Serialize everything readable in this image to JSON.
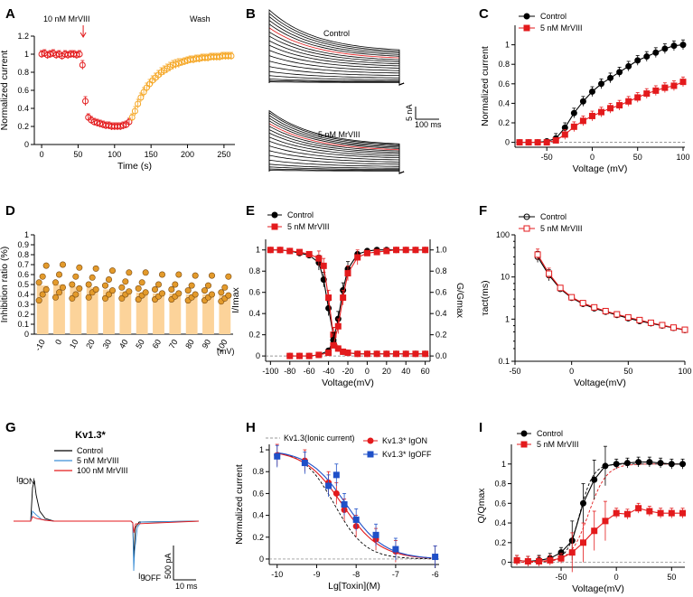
{
  "colors": {
    "black": "#000000",
    "red": "#e31a1c",
    "orange": "#f5a623",
    "bar": "#fcd39a",
    "barDot": "#e39a2b",
    "blue": "#1f50c8",
    "lightblue": "#3d8fd6"
  },
  "chart_data": [
    {
      "id": "A",
      "type": "scatter",
      "panel_label": "A",
      "xlabel": "Time (s)",
      "ylabel": "Normalized current",
      "xlim": [
        -10,
        265
      ],
      "ylim": [
        0,
        1.2
      ],
      "xticks": [
        0,
        50,
        100,
        150,
        200,
        250
      ],
      "yticks": [
        0.0,
        0.2,
        0.4,
        0.6,
        0.8,
        1.0,
        1.2
      ],
      "annotations": {
        "drug": "10 nM MrVIII",
        "wash": "Wash"
      },
      "series": [
        {
          "name": "drug",
          "color": "red",
          "x": [
            0,
            4,
            8,
            12,
            16,
            20,
            24,
            28,
            32,
            36,
            40,
            44,
            48,
            52,
            56,
            60,
            64,
            68,
            72,
            76,
            80,
            84,
            88,
            92,
            96,
            100,
            104,
            108,
            112,
            116,
            120
          ],
          "y": [
            1.0,
            1.01,
            0.99,
            1.0,
            1.01,
            0.99,
            1.0,
            0.98,
            1.0,
            0.99,
            1.0,
            1.0,
            0.99,
            1.0,
            0.88,
            0.48,
            0.3,
            0.27,
            0.25,
            0.24,
            0.23,
            0.22,
            0.21,
            0.21,
            0.2,
            0.2,
            0.2,
            0.2,
            0.21,
            0.22,
            0.25
          ]
        },
        {
          "name": "wash",
          "color": "orange",
          "x": [
            124,
            128,
            132,
            136,
            140,
            144,
            148,
            152,
            156,
            160,
            164,
            168,
            172,
            176,
            180,
            184,
            188,
            192,
            196,
            200,
            204,
            208,
            212,
            216,
            220,
            224,
            228,
            232,
            236,
            240,
            244,
            248,
            252,
            256,
            260
          ],
          "y": [
            0.3,
            0.37,
            0.45,
            0.52,
            0.58,
            0.63,
            0.67,
            0.71,
            0.74,
            0.77,
            0.8,
            0.82,
            0.84,
            0.86,
            0.88,
            0.89,
            0.9,
            0.91,
            0.92,
            0.93,
            0.94,
            0.94,
            0.95,
            0.95,
            0.96,
            0.96,
            0.96,
            0.97,
            0.97,
            0.97,
            0.97,
            0.98,
            0.98,
            0.98,
            0.98
          ]
        }
      ]
    },
    {
      "id": "B",
      "type": "line",
      "panel_label": "B",
      "traces_top_label": "Control",
      "traces_bottom_label": "5 nM MrVIII",
      "scale_current": "5 nA",
      "scale_time": "100 ms",
      "top_peaks_nA": [
        0.3,
        0.6,
        1.0,
        1.8,
        2.8,
        4.0,
        5.3,
        6.6,
        7.9,
        9.1,
        10.2,
        11.3,
        12.3,
        13.3,
        14.2,
        15.1,
        16.0,
        16.8,
        17.6
      ],
      "bottom_peaks_nA": [
        0.2,
        0.4,
        0.7,
        1.1,
        1.7,
        2.4,
        3.1,
        3.8,
        4.5,
        5.1,
        5.7,
        6.2,
        6.7,
        7.1,
        7.5,
        7.9,
        8.3,
        8.7,
        9.0
      ],
      "red_trace_index": 13
    },
    {
      "id": "C",
      "type": "line",
      "panel_label": "C",
      "xlabel": "Voltage (mV)",
      "ylabel": "Normalized current",
      "xlim": [
        -85,
        102
      ],
      "ylim": [
        -0.05,
        1.2
      ],
      "xticks": [
        -50,
        0,
        50,
        100
      ],
      "yticks": [
        0.0,
        0.2,
        0.4,
        0.6,
        0.8,
        1.0
      ],
      "series": [
        {
          "name": "Control",
          "color": "black",
          "marker": "circle",
          "x": [
            -80,
            -70,
            -60,
            -50,
            -40,
            -30,
            -20,
            -10,
            0,
            10,
            20,
            30,
            40,
            50,
            60,
            70,
            80,
            90,
            100
          ],
          "y": [
            0,
            0,
            0,
            0.01,
            0.04,
            0.15,
            0.3,
            0.42,
            0.52,
            0.6,
            0.66,
            0.72,
            0.78,
            0.84,
            0.88,
            0.92,
            0.96,
            0.99,
            1.0
          ]
        },
        {
          "name": "5 nM MrVIII",
          "color": "red",
          "marker": "square",
          "x": [
            -80,
            -70,
            -60,
            -50,
            -40,
            -30,
            -20,
            -10,
            0,
            10,
            20,
            30,
            40,
            50,
            60,
            70,
            80,
            90,
            100
          ],
          "y": [
            0,
            0,
            0,
            0,
            0.02,
            0.08,
            0.16,
            0.22,
            0.27,
            0.31,
            0.35,
            0.38,
            0.42,
            0.46,
            0.5,
            0.53,
            0.56,
            0.58,
            0.62
          ]
        }
      ]
    },
    {
      "id": "D",
      "type": "bar",
      "panel_label": "D",
      "ylabel": "Inhibition ratio (%)",
      "xunit": "(mV)",
      "categories": [
        "-10",
        "0",
        "10",
        "20",
        "30",
        "40",
        "50",
        "60",
        "70",
        "80",
        "90",
        "100"
      ],
      "values": [
        0.49,
        0.5,
        0.48,
        0.47,
        0.45,
        0.43,
        0.42,
        0.41,
        0.41,
        0.4,
        0.4,
        0.39
      ],
      "points": [
        [
          0.34,
          0.4,
          0.45,
          0.52,
          0.58,
          0.69
        ],
        [
          0.37,
          0.42,
          0.47,
          0.52,
          0.6,
          0.7
        ],
        [
          0.36,
          0.4,
          0.46,
          0.5,
          0.58,
          0.67
        ],
        [
          0.37,
          0.42,
          0.45,
          0.5,
          0.57,
          0.66
        ],
        [
          0.36,
          0.4,
          0.44,
          0.49,
          0.55,
          0.64
        ],
        [
          0.36,
          0.4,
          0.43,
          0.47,
          0.53,
          0.62
        ],
        [
          0.35,
          0.39,
          0.42,
          0.46,
          0.52,
          0.62
        ],
        [
          0.35,
          0.38,
          0.41,
          0.45,
          0.5,
          0.6
        ],
        [
          0.35,
          0.38,
          0.41,
          0.45,
          0.5,
          0.6
        ],
        [
          0.34,
          0.37,
          0.4,
          0.44,
          0.49,
          0.59
        ],
        [
          0.34,
          0.37,
          0.4,
          0.44,
          0.49,
          0.59
        ],
        [
          0.33,
          0.36,
          0.39,
          0.42,
          0.47,
          0.58
        ]
      ],
      "ylim": [
        0,
        1.0
      ],
      "yticks": [
        0.0,
        0.1,
        0.2,
        0.3,
        0.4,
        0.5,
        0.6,
        0.7,
        0.8,
        0.9,
        1.0
      ]
    },
    {
      "id": "E",
      "type": "line",
      "panel_label": "E",
      "xlabel": "Voltage(mV)",
      "ylabel": "I/Imax",
      "ylabel_right": "G/Gmax",
      "xlim": [
        -105,
        65
      ],
      "ylim": [
        -0.05,
        1.1
      ],
      "xticks": [
        -100,
        -80,
        -60,
        -40,
        -20,
        0,
        20,
        40,
        60
      ],
      "yticks": [
        0.0,
        0.2,
        0.4,
        0.6,
        0.8,
        1.0
      ],
      "yticks_right": [
        "0.0",
        "0.2",
        "0.4",
        "0.6",
        "0.8",
        "1.0"
      ],
      "series": [
        {
          "name": "Control",
          "color": "black",
          "marker": "circle",
          "x": [
            -100,
            -90,
            -80,
            -70,
            -60,
            -50,
            -45,
            -40,
            -35,
            -30,
            -25,
            -20,
            -10,
            0,
            10,
            20,
            30,
            40,
            50,
            60
          ],
          "y": [
            1.0,
            1.0,
            0.99,
            0.97,
            0.95,
            0.88,
            0.72,
            0.45,
            0.2,
            0.07,
            0.04,
            0.03,
            0.02,
            0.02,
            0.02,
            0.02,
            0.02,
            0.02,
            0.02,
            0.02
          ]
        },
        {
          "name": "5 nM MrVIII",
          "color": "red",
          "marker": "square",
          "x": [
            -100,
            -90,
            -80,
            -70,
            -60,
            -50,
            -45,
            -40,
            -35,
            -30,
            -25,
            -20,
            -10,
            0,
            10,
            20,
            30,
            40,
            50,
            60
          ],
          "y": [
            1.0,
            1.0,
            0.99,
            0.98,
            0.96,
            0.92,
            0.85,
            0.55,
            0.2,
            0.07,
            0.04,
            0.03,
            0.02,
            0.02,
            0.02,
            0.02,
            0.02,
            0.02,
            0.02,
            0.02
          ]
        },
        {
          "name": "Control G",
          "color": "black",
          "marker": "circle",
          "x": [
            -80,
            -70,
            -60,
            -50,
            -40,
            -35,
            -30,
            -25,
            -20,
            -10,
            0,
            10,
            20,
            30,
            40,
            50,
            60
          ],
          "y": [
            0.0,
            0.0,
            0.0,
            0.01,
            0.05,
            0.15,
            0.35,
            0.62,
            0.82,
            0.96,
            0.99,
            1.0,
            1.0,
            1.0,
            1.0,
            1.0,
            1.0
          ]
        },
        {
          "name": "5 nM MrVIII G",
          "color": "red",
          "marker": "square",
          "x": [
            -80,
            -70,
            -60,
            -50,
            -40,
            -35,
            -30,
            -25,
            -20,
            -10,
            0,
            10,
            20,
            30,
            40,
            50,
            60
          ],
          "y": [
            0.0,
            0.0,
            0.0,
            0.01,
            0.03,
            0.1,
            0.28,
            0.55,
            0.78,
            0.93,
            0.97,
            0.98,
            0.99,
            1.0,
            1.0,
            1.0,
            1.0
          ]
        }
      ]
    },
    {
      "id": "F",
      "type": "line",
      "panel_label": "F",
      "xlabel": "Voltage(mV)",
      "ylabel": "τact(ms)",
      "xlim": [
        -50,
        100
      ],
      "ylim_log": [
        0.1,
        100
      ],
      "xticks": [
        -50,
        0,
        50,
        100
      ],
      "yticks": [
        "0.1",
        "1",
        "10",
        "100"
      ],
      "series": [
        {
          "name": "Control",
          "color": "black",
          "marker": "open-circle",
          "x": [
            -30,
            -20,
            -10,
            0,
            10,
            20,
            30,
            40,
            50,
            60,
            70,
            80,
            90,
            100
          ],
          "y": [
            30,
            11,
            5.2,
            3.2,
            2.3,
            1.8,
            1.5,
            1.25,
            1.05,
            0.9,
            0.8,
            0.7,
            0.62,
            0.55
          ]
        },
        {
          "name": "5 nM MrVIII",
          "color": "red",
          "marker": "open-square",
          "x": [
            -30,
            -20,
            -10,
            0,
            10,
            20,
            30,
            40,
            50,
            60,
            70,
            80,
            90,
            100
          ],
          "y": [
            34,
            12,
            5.5,
            3.3,
            2.4,
            1.9,
            1.55,
            1.3,
            1.1,
            0.95,
            0.82,
            0.72,
            0.63,
            0.56
          ]
        }
      ]
    },
    {
      "id": "G",
      "type": "line",
      "panel_label": "G",
      "title": "Kv1.3*",
      "legend": [
        "Control",
        "5 nM MrVIII",
        "100 nM MrVIII"
      ],
      "label_on": "IgON",
      "label_off": "IgOFF",
      "scale_current": "500 pA",
      "scale_time": "10 ms"
    },
    {
      "id": "H",
      "type": "line",
      "panel_label": "H",
      "xlabel": "Lg[Toxin](M)",
      "ylabel": "Normalized current",
      "xlim": [
        -10.2,
        -5.9
      ],
      "ylim": [
        -0.05,
        1.05
      ],
      "xticks": [
        -10,
        -9,
        -8,
        -7,
        -6
      ],
      "yticks": [
        0.0,
        0.2,
        0.4,
        0.6,
        0.8,
        1.0
      ],
      "legend_dashed": "Kv1.3(Ionic current)",
      "series": [
        {
          "name": "Kv1.3* IgON",
          "color": "red",
          "marker": "circle",
          "x": [
            -10,
            -9.3,
            -8.7,
            -8.5,
            -8.3,
            -8.0,
            -7.5,
            -7.0,
            -6.0
          ],
          "y": [
            0.95,
            0.9,
            0.7,
            0.6,
            0.45,
            0.3,
            0.18,
            0.07,
            0.02
          ]
        },
        {
          "name": "Kv1.3* IgOFF",
          "color": "blue",
          "marker": "square",
          "x": [
            -10,
            -9.3,
            -8.7,
            -8.5,
            -8.3,
            -8.0,
            -7.5,
            -7.0,
            -6.0
          ],
          "y": [
            0.94,
            0.88,
            0.67,
            0.77,
            0.5,
            0.36,
            0.22,
            0.09,
            0.02
          ]
        }
      ]
    },
    {
      "id": "I",
      "type": "line",
      "panel_label": "I",
      "xlabel": "Voltage(mV)",
      "ylabel": "Q/Qmax",
      "xlim": [
        -95,
        62
      ],
      "ylim": [
        -0.05,
        1.2
      ],
      "xticks": [
        -50,
        0,
        50
      ],
      "yticks": [
        0.0,
        0.2,
        0.4,
        0.6,
        0.8,
        1.0
      ],
      "series": [
        {
          "name": "Control",
          "color": "black",
          "marker": "circle",
          "x": [
            -90,
            -80,
            -70,
            -60,
            -50,
            -40,
            -30,
            -20,
            -10,
            0,
            10,
            20,
            30,
            40,
            50,
            60
          ],
          "y": [
            0.02,
            0.01,
            0.02,
            0.04,
            0.1,
            0.22,
            0.6,
            0.84,
            0.98,
            1.0,
            1.01,
            1.02,
            1.02,
            1.01,
            1.0,
            1.0
          ]
        },
        {
          "name": "5 nM MrVIII",
          "color": "red",
          "marker": "square",
          "x": [
            -90,
            -80,
            -70,
            -60,
            -50,
            -40,
            -30,
            -20,
            -10,
            0,
            10,
            20,
            30,
            40,
            50,
            60
          ],
          "y": [
            0.02,
            0.01,
            0.01,
            0.02,
            0.04,
            0.1,
            0.2,
            0.32,
            0.42,
            0.5,
            0.49,
            0.55,
            0.52,
            0.5,
            0.5,
            0.5
          ]
        }
      ]
    }
  ]
}
